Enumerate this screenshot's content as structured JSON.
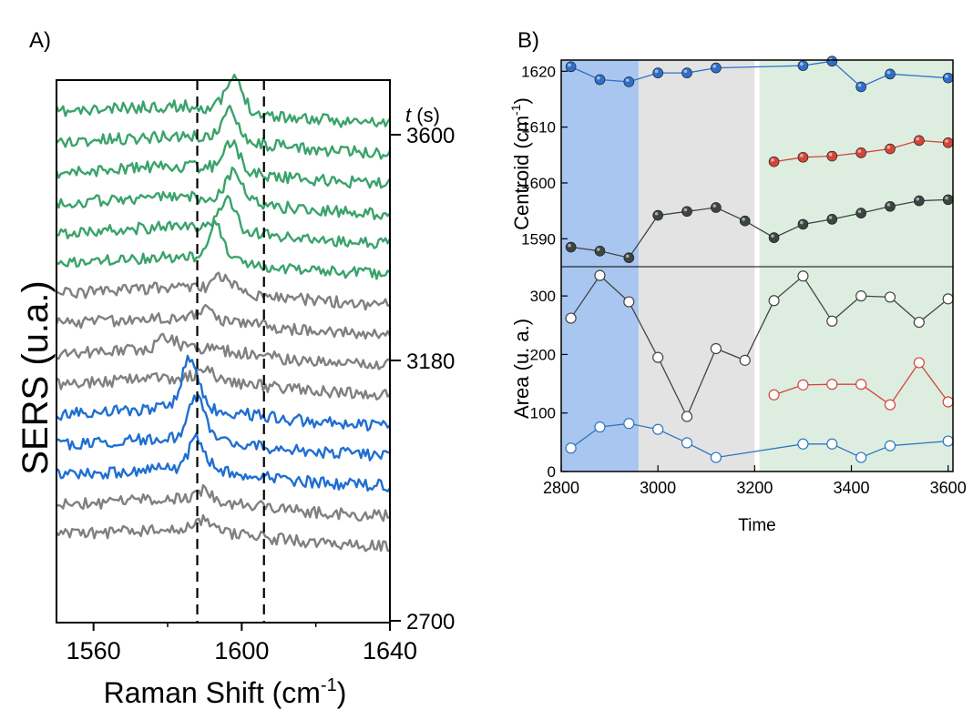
{
  "chart_data": [
    {
      "type": "line",
      "panel_label": "A)",
      "xlabel": "Raman Shift (cm",
      "xlabel_sup": "-1",
      "xlabel_end": ")",
      "ylabel": "SERS (u.a.)",
      "xlim": [
        1550,
        1640
      ],
      "x_ticks": [
        "1560",
        "1600",
        "1640"
      ],
      "x_tick_values": [
        1560,
        1600,
        1640
      ],
      "right_axis_title_italic": "t",
      "right_axis_title_rest": " (s)",
      "right_axis_ticks": [
        "3600",
        "3180",
        "2700"
      ],
      "dashed_lines_at": [
        1588,
        1606
      ],
      "series": [
        {
          "color": "#3aa36b",
          "peak": 1598,
          "height": 1.0
        },
        {
          "color": "#3aa36b",
          "peak": 1597,
          "height": 0.95
        },
        {
          "color": "#3aa36b",
          "peak": 1597,
          "height": 0.9
        },
        {
          "color": "#3aa36b",
          "peak": 1598,
          "height": 0.95
        },
        {
          "color": "#3aa36b",
          "peak": 1596,
          "height": 1.0
        },
        {
          "color": "#3aa36b",
          "peak": 1593,
          "height": 1.1
        },
        {
          "color": "#808080",
          "peak": 1595,
          "height": 0.45
        },
        {
          "color": "#808080",
          "peak": 1590,
          "height": 0.3
        },
        {
          "color": "#808080",
          "peak": 1580,
          "height": 0.35
        },
        {
          "color": "#808080",
          "peak": 1590,
          "height": 0.3
        },
        {
          "color": "#1f6fd1",
          "peak": 1586,
          "height": 1.6
        },
        {
          "color": "#1f6fd1",
          "peak": 1588,
          "height": 1.4
        },
        {
          "color": "#1f6fd1",
          "peak": 1588,
          "height": 1.0
        },
        {
          "color": "#808080",
          "peak": 1590,
          "height": 0.3
        },
        {
          "color": "#808080",
          "peak": 1590,
          "height": 0.3
        }
      ]
    },
    {
      "type": "scatter",
      "panel_label": "B)",
      "xlabel": "Time",
      "xlim": [
        2800,
        3610
      ],
      "x_ticks": [
        "2800",
        "3000",
        "3200",
        "3400",
        "3600"
      ],
      "x_tick_values": [
        2800,
        3000,
        3200,
        3400,
        3600
      ],
      "regions": [
        {
          "x0": 2800,
          "x1": 2960,
          "color": "#a8c6ef"
        },
        {
          "x0": 2960,
          "x1": 3200,
          "color": "#e3e3e3"
        },
        {
          "x0": 3210,
          "x1": 3610,
          "color": "#ddeee1"
        }
      ],
      "top": {
        "ylabel": "Centroid (cm",
        "ylabel_sup": "-1",
        "ylabel_end": ")",
        "ylim": [
          1585,
          1622
        ],
        "y_ticks": [
          "1590",
          "1600",
          "1610",
          "1620"
        ],
        "y_tick_values": [
          1590,
          1600,
          1610,
          1620
        ],
        "series": [
          {
            "color": "#2f6fca",
            "x": [
              2820,
              2880,
              2940,
              3000,
              3060,
              3120,
              3300,
              3360,
              3420,
              3480,
              3600
            ],
            "y": [
              1620.8,
              1618.5,
              1618.1,
              1619.7,
              1619.7,
              1620.6,
              1621.0,
              1621.8,
              1617.2,
              1619.5,
              1618.8
            ]
          },
          {
            "color": "#d2463a",
            "x": [
              3240,
              3300,
              3360,
              3420,
              3480,
              3540,
              3600
            ],
            "y": [
              1603.8,
              1604.6,
              1604.8,
              1605.4,
              1606.1,
              1607.6,
              1607.2
            ]
          },
          {
            "color": "#3d4543",
            "x": [
              2820,
              2880,
              2940,
              3000,
              3060,
              3120,
              3180,
              3240,
              3300,
              3360,
              3420,
              3480,
              3540,
              3600
            ],
            "y": [
              1588.5,
              1587.8,
              1586.6,
              1594.2,
              1594.9,
              1595.6,
              1593.2,
              1590.2,
              1592.6,
              1593.5,
              1594.6,
              1595.8,
              1596.8,
              1597.0
            ]
          }
        ]
      },
      "bottom": {
        "ylabel": "Area (u. a.)",
        "ylim": [
          0,
          350
        ],
        "y_ticks": [
          "0",
          "100",
          "200",
          "300"
        ],
        "y_tick_values": [
          0,
          100,
          200,
          300
        ],
        "series": [
          {
            "color": "#444444",
            "x": [
              2820,
              2880,
              2940,
              3000,
              3060,
              3120,
              3180,
              3240,
              3300,
              3360,
              3420,
              3480,
              3540,
              3600
            ],
            "y": [
              262,
              335,
              290,
              195,
              94,
              210,
              190,
              292,
              334,
              257,
              300,
              298,
              255,
              295
            ]
          },
          {
            "color": "#d2463a",
            "x": [
              3240,
              3300,
              3360,
              3420,
              3480,
              3540,
              3600
            ],
            "y": [
              131,
              148,
              149,
              149,
              114,
              186,
              119
            ]
          },
          {
            "color": "#2f76c4",
            "x": [
              2820,
              2880,
              2940,
              3000,
              3060,
              3120,
              3300,
              3360,
              3420,
              3480,
              3600
            ],
            "y": [
              40,
              76,
              82,
              72,
              49,
              24,
              47,
              47,
              24,
              44,
              52
            ]
          }
        ]
      }
    }
  ]
}
